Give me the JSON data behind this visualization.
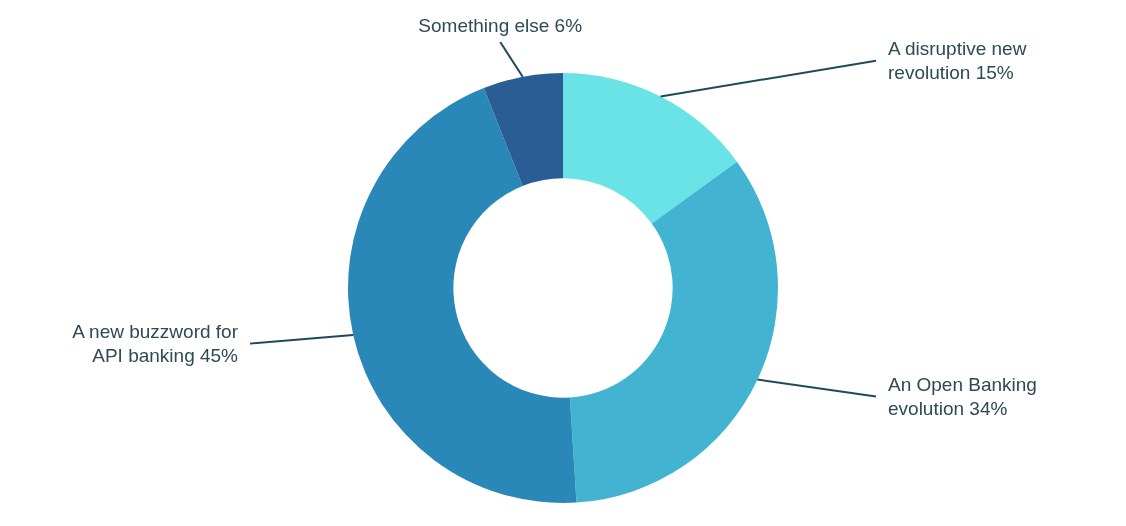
{
  "chart_data": {
    "type": "donut",
    "categories": [
      "A disruptive new revolution",
      "An Open Banking evolution",
      "A new buzzword for API banking",
      "Something else"
    ],
    "values": [
      15,
      34,
      45,
      6
    ],
    "value_labels": [
      "15%",
      "34%",
      "45%",
      "6%"
    ],
    "colors": [
      "#6ae3e6",
      "#42b4d2",
      "#2a88b8",
      "#2b5d95"
    ],
    "legend": false
  }
}
